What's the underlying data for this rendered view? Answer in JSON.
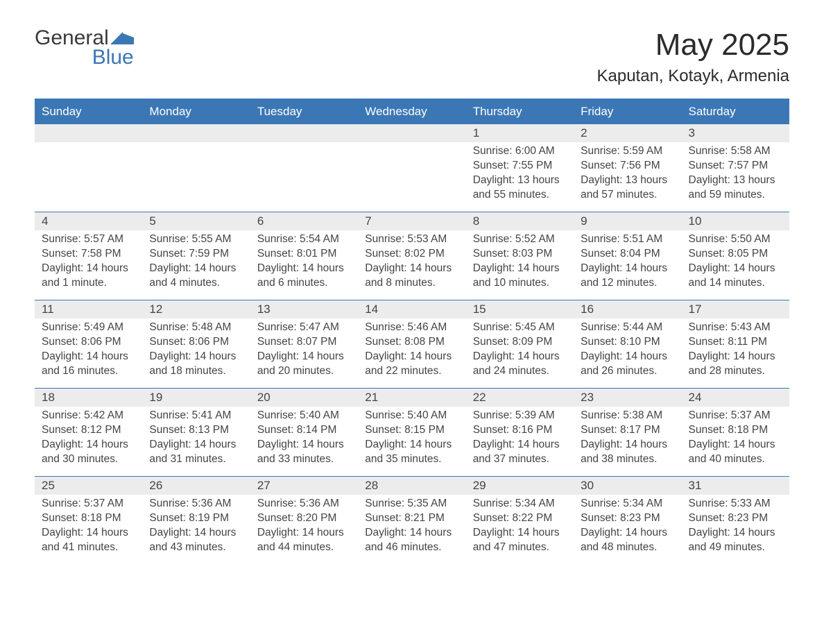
{
  "logo": {
    "word1": "General",
    "word2": "Blue",
    "mark_color": "#3b77b5",
    "text_color": "#3a3a3a"
  },
  "title": "May 2025",
  "subtitle": "Kaputan, Kotayk, Armenia",
  "colors": {
    "header_bg": "#3b77b5",
    "header_text": "#ffffff",
    "row_sep": "#3b77b5",
    "daynum_bg": "#ececec",
    "body_text": "#444444",
    "page_bg": "#ffffff"
  },
  "typography": {
    "title_fontsize": 44,
    "subtitle_fontsize": 24,
    "dow_fontsize": 17,
    "daynum_fontsize": 17,
    "body_fontsize": 15.5
  },
  "days_of_week": [
    "Sunday",
    "Monday",
    "Tuesday",
    "Wednesday",
    "Thursday",
    "Friday",
    "Saturday"
  ],
  "weeks": [
    [
      {
        "day": "",
        "sunrise": "",
        "sunset": "",
        "daylight": ""
      },
      {
        "day": "",
        "sunrise": "",
        "sunset": "",
        "daylight": ""
      },
      {
        "day": "",
        "sunrise": "",
        "sunset": "",
        "daylight": ""
      },
      {
        "day": "",
        "sunrise": "",
        "sunset": "",
        "daylight": ""
      },
      {
        "day": "1",
        "sunrise": "Sunrise: 6:00 AM",
        "sunset": "Sunset: 7:55 PM",
        "daylight": "Daylight: 13 hours and 55 minutes."
      },
      {
        "day": "2",
        "sunrise": "Sunrise: 5:59 AM",
        "sunset": "Sunset: 7:56 PM",
        "daylight": "Daylight: 13 hours and 57 minutes."
      },
      {
        "day": "3",
        "sunrise": "Sunrise: 5:58 AM",
        "sunset": "Sunset: 7:57 PM",
        "daylight": "Daylight: 13 hours and 59 minutes."
      }
    ],
    [
      {
        "day": "4",
        "sunrise": "Sunrise: 5:57 AM",
        "sunset": "Sunset: 7:58 PM",
        "daylight": "Daylight: 14 hours and 1 minute."
      },
      {
        "day": "5",
        "sunrise": "Sunrise: 5:55 AM",
        "sunset": "Sunset: 7:59 PM",
        "daylight": "Daylight: 14 hours and 4 minutes."
      },
      {
        "day": "6",
        "sunrise": "Sunrise: 5:54 AM",
        "sunset": "Sunset: 8:01 PM",
        "daylight": "Daylight: 14 hours and 6 minutes."
      },
      {
        "day": "7",
        "sunrise": "Sunrise: 5:53 AM",
        "sunset": "Sunset: 8:02 PM",
        "daylight": "Daylight: 14 hours and 8 minutes."
      },
      {
        "day": "8",
        "sunrise": "Sunrise: 5:52 AM",
        "sunset": "Sunset: 8:03 PM",
        "daylight": "Daylight: 14 hours and 10 minutes."
      },
      {
        "day": "9",
        "sunrise": "Sunrise: 5:51 AM",
        "sunset": "Sunset: 8:04 PM",
        "daylight": "Daylight: 14 hours and 12 minutes."
      },
      {
        "day": "10",
        "sunrise": "Sunrise: 5:50 AM",
        "sunset": "Sunset: 8:05 PM",
        "daylight": "Daylight: 14 hours and 14 minutes."
      }
    ],
    [
      {
        "day": "11",
        "sunrise": "Sunrise: 5:49 AM",
        "sunset": "Sunset: 8:06 PM",
        "daylight": "Daylight: 14 hours and 16 minutes."
      },
      {
        "day": "12",
        "sunrise": "Sunrise: 5:48 AM",
        "sunset": "Sunset: 8:06 PM",
        "daylight": "Daylight: 14 hours and 18 minutes."
      },
      {
        "day": "13",
        "sunrise": "Sunrise: 5:47 AM",
        "sunset": "Sunset: 8:07 PM",
        "daylight": "Daylight: 14 hours and 20 minutes."
      },
      {
        "day": "14",
        "sunrise": "Sunrise: 5:46 AM",
        "sunset": "Sunset: 8:08 PM",
        "daylight": "Daylight: 14 hours and 22 minutes."
      },
      {
        "day": "15",
        "sunrise": "Sunrise: 5:45 AM",
        "sunset": "Sunset: 8:09 PM",
        "daylight": "Daylight: 14 hours and 24 minutes."
      },
      {
        "day": "16",
        "sunrise": "Sunrise: 5:44 AM",
        "sunset": "Sunset: 8:10 PM",
        "daylight": "Daylight: 14 hours and 26 minutes."
      },
      {
        "day": "17",
        "sunrise": "Sunrise: 5:43 AM",
        "sunset": "Sunset: 8:11 PM",
        "daylight": "Daylight: 14 hours and 28 minutes."
      }
    ],
    [
      {
        "day": "18",
        "sunrise": "Sunrise: 5:42 AM",
        "sunset": "Sunset: 8:12 PM",
        "daylight": "Daylight: 14 hours and 30 minutes."
      },
      {
        "day": "19",
        "sunrise": "Sunrise: 5:41 AM",
        "sunset": "Sunset: 8:13 PM",
        "daylight": "Daylight: 14 hours and 31 minutes."
      },
      {
        "day": "20",
        "sunrise": "Sunrise: 5:40 AM",
        "sunset": "Sunset: 8:14 PM",
        "daylight": "Daylight: 14 hours and 33 minutes."
      },
      {
        "day": "21",
        "sunrise": "Sunrise: 5:40 AM",
        "sunset": "Sunset: 8:15 PM",
        "daylight": "Daylight: 14 hours and 35 minutes."
      },
      {
        "day": "22",
        "sunrise": "Sunrise: 5:39 AM",
        "sunset": "Sunset: 8:16 PM",
        "daylight": "Daylight: 14 hours and 37 minutes."
      },
      {
        "day": "23",
        "sunrise": "Sunrise: 5:38 AM",
        "sunset": "Sunset: 8:17 PM",
        "daylight": "Daylight: 14 hours and 38 minutes."
      },
      {
        "day": "24",
        "sunrise": "Sunrise: 5:37 AM",
        "sunset": "Sunset: 8:18 PM",
        "daylight": "Daylight: 14 hours and 40 minutes."
      }
    ],
    [
      {
        "day": "25",
        "sunrise": "Sunrise: 5:37 AM",
        "sunset": "Sunset: 8:18 PM",
        "daylight": "Daylight: 14 hours and 41 minutes."
      },
      {
        "day": "26",
        "sunrise": "Sunrise: 5:36 AM",
        "sunset": "Sunset: 8:19 PM",
        "daylight": "Daylight: 14 hours and 43 minutes."
      },
      {
        "day": "27",
        "sunrise": "Sunrise: 5:36 AM",
        "sunset": "Sunset: 8:20 PM",
        "daylight": "Daylight: 14 hours and 44 minutes."
      },
      {
        "day": "28",
        "sunrise": "Sunrise: 5:35 AM",
        "sunset": "Sunset: 8:21 PM",
        "daylight": "Daylight: 14 hours and 46 minutes."
      },
      {
        "day": "29",
        "sunrise": "Sunrise: 5:34 AM",
        "sunset": "Sunset: 8:22 PM",
        "daylight": "Daylight: 14 hours and 47 minutes."
      },
      {
        "day": "30",
        "sunrise": "Sunrise: 5:34 AM",
        "sunset": "Sunset: 8:23 PM",
        "daylight": "Daylight: 14 hours and 48 minutes."
      },
      {
        "day": "31",
        "sunrise": "Sunrise: 5:33 AM",
        "sunset": "Sunset: 8:23 PM",
        "daylight": "Daylight: 14 hours and 49 minutes."
      }
    ]
  ]
}
